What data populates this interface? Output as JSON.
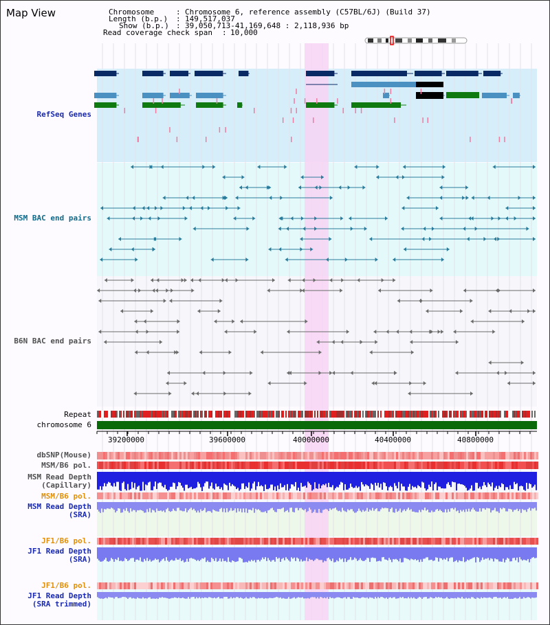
{
  "title": "Map View",
  "header": {
    "chromosome_key": "Chromosome",
    "chromosome_val": "Chromosome 6, reference assembly (C57BL/6J) (Build 37)",
    "length_key": "Length (b.p.)",
    "length_val": "149,517,037",
    "show_key": "Show (b.p.)",
    "show_val": "39,050,713-41,169,648 : 2,118,936 bp",
    "coverage_key": "Read coverage check span",
    "coverage_val": "10,000"
  },
  "tracks": {
    "refseq": "RefSeq Genes",
    "msm_bac": "MSM BAC end pairs",
    "b6n_bac": "B6N BAC end pairs",
    "repeat": "Repeat",
    "chromosome": "chromosome 6",
    "dbsnp": "dbSNP(Mouse)",
    "msm_b6_pol_1": "MSM/B6 pol.",
    "msm_depth_cap": "MSM Read Depth\n(Capillary)",
    "msm_b6_pol_2": "MSM/B6 pol.",
    "msm_depth_sra": "MSM Read Depth\n(SRA)",
    "jf1_b6_pol_1": "JF1/B6 pol.",
    "jf1_depth_sra": "JF1 Read Depth\n(SRA)",
    "jf1_b6_pol_2": "JF1/B6 pol.",
    "jf1_depth_trim": "JF1 Read Depth\n(SRA trimmed)"
  },
  "axis": {
    "ticks": [
      "39200000",
      "39600000",
      "40000000",
      "40400000",
      "40800000"
    ]
  },
  "colors": {
    "refseq_bg": "#d6eef9",
    "msm_bg": "#e4fafa",
    "b6n_bg": "#f7f7fb",
    "highlight": "#f8d4f4",
    "gene_navy": "#0a2a66",
    "gene_blue": "#4a90c0",
    "gene_green": "#0f7a0f",
    "msm_pair": "#2a7a9a",
    "b6n_pair": "#6a6a6a",
    "chrom_bar": "#0a6a0a",
    "label_blue": "#1a2ab0",
    "label_teal": "#106a8a",
    "label_gray": "#505050",
    "label_orange": "#e0900a"
  }
}
